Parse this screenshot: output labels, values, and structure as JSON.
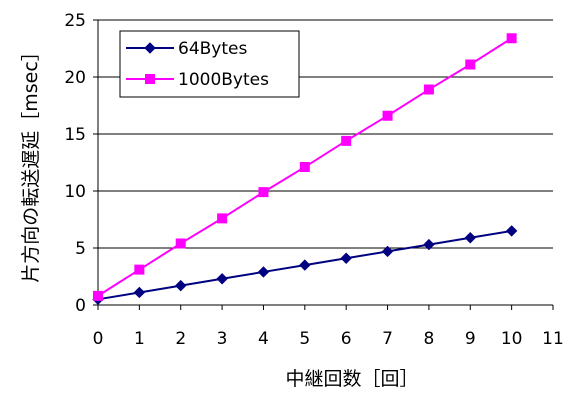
{
  "chart_data": {
    "type": "line",
    "xlabel": "中継回数［回］",
    "ylabel": "片方向の転送遅延［msec］",
    "xlim": [
      0,
      11
    ],
    "ylim": [
      0,
      25
    ],
    "x_ticks": [
      "0",
      "1",
      "2",
      "3",
      "4",
      "5",
      "6",
      "7",
      "8",
      "9",
      "10",
      "11"
    ],
    "y_ticks": [
      "0",
      "5",
      "10",
      "15",
      "20",
      "25"
    ],
    "grid": "horizontal",
    "legend_position": "top-left",
    "x": [
      0,
      1,
      2,
      3,
      4,
      5,
      6,
      7,
      8,
      9,
      10
    ],
    "series": [
      {
        "name": "64Bytes",
        "color": "#000080",
        "marker": "diamond",
        "values": [
          0.5,
          1.1,
          1.7,
          2.3,
          2.9,
          3.5,
          4.1,
          4.7,
          5.3,
          5.9,
          6.5
        ]
      },
      {
        "name": "1000Bytes",
        "color": "#ff00ff",
        "marker": "square",
        "values": [
          0.8,
          3.1,
          5.4,
          7.6,
          9.9,
          12.1,
          14.4,
          16.6,
          18.9,
          21.1,
          23.4
        ]
      }
    ]
  }
}
